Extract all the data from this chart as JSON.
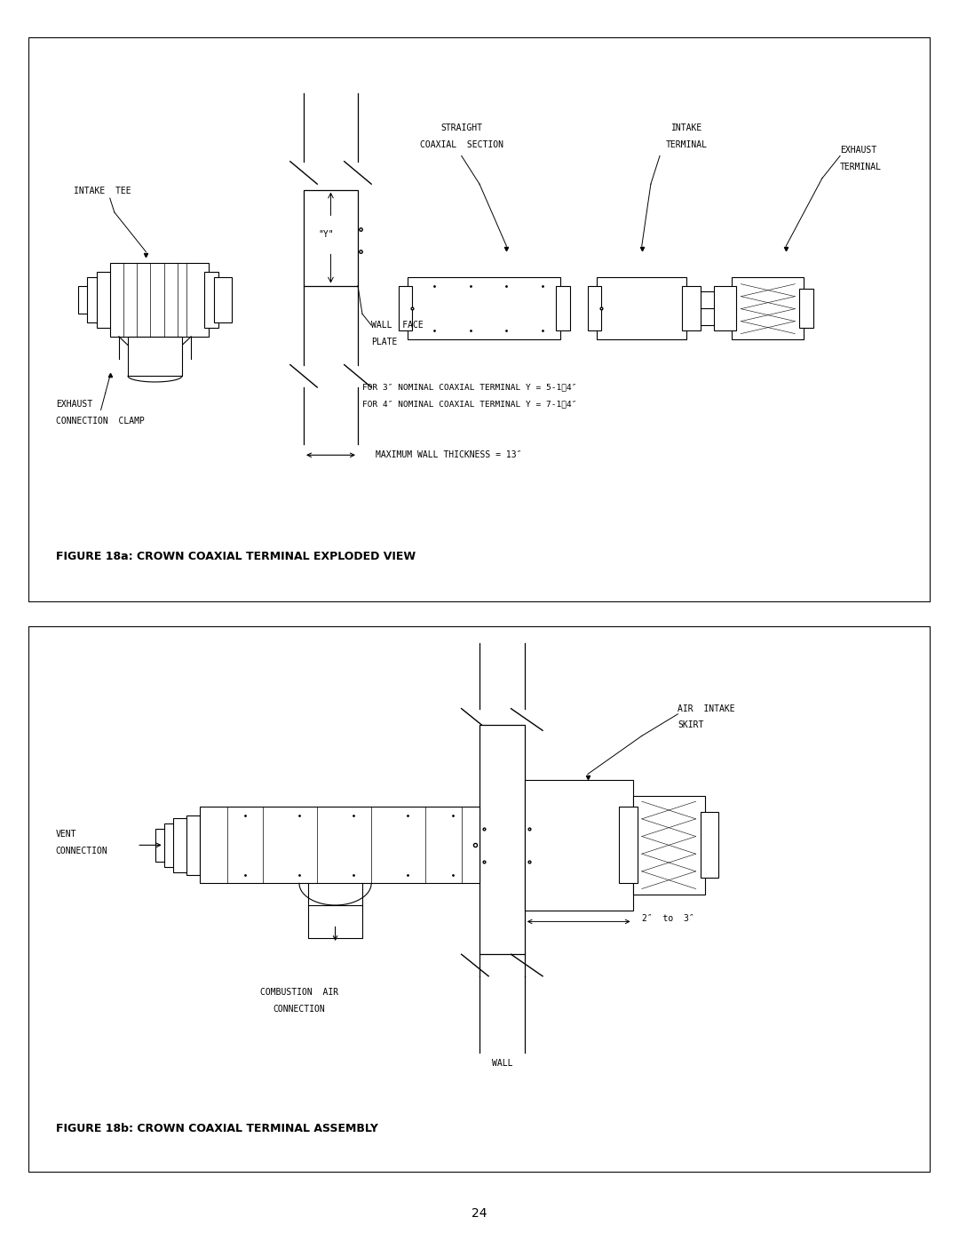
{
  "fig_width": 10.8,
  "fig_height": 13.97,
  "bg_color": "#ffffff",
  "border_color": "#000000",
  "line_color": "#000000",
  "text_color": "#000000",
  "figure_caption_a": "FIGURE 18a: CROWN COAXIAL TERMINAL EXPLODED VIEW",
  "figure_caption_b": "FIGURE 18b: CROWN COAXIAL TERMINAL ASSEMBLY",
  "page_number": "24",
  "note_line1": "FOR 3″ NOMINAL COAXIAL TERMINAL Y = 5-1⁄4″",
  "note_line2": "FOR 4″ NOMINAL COAXIAL TERMINAL Y = 7-1⁄4″",
  "note_line3": "MAXIMUM WALL THICKNESS = 13″"
}
